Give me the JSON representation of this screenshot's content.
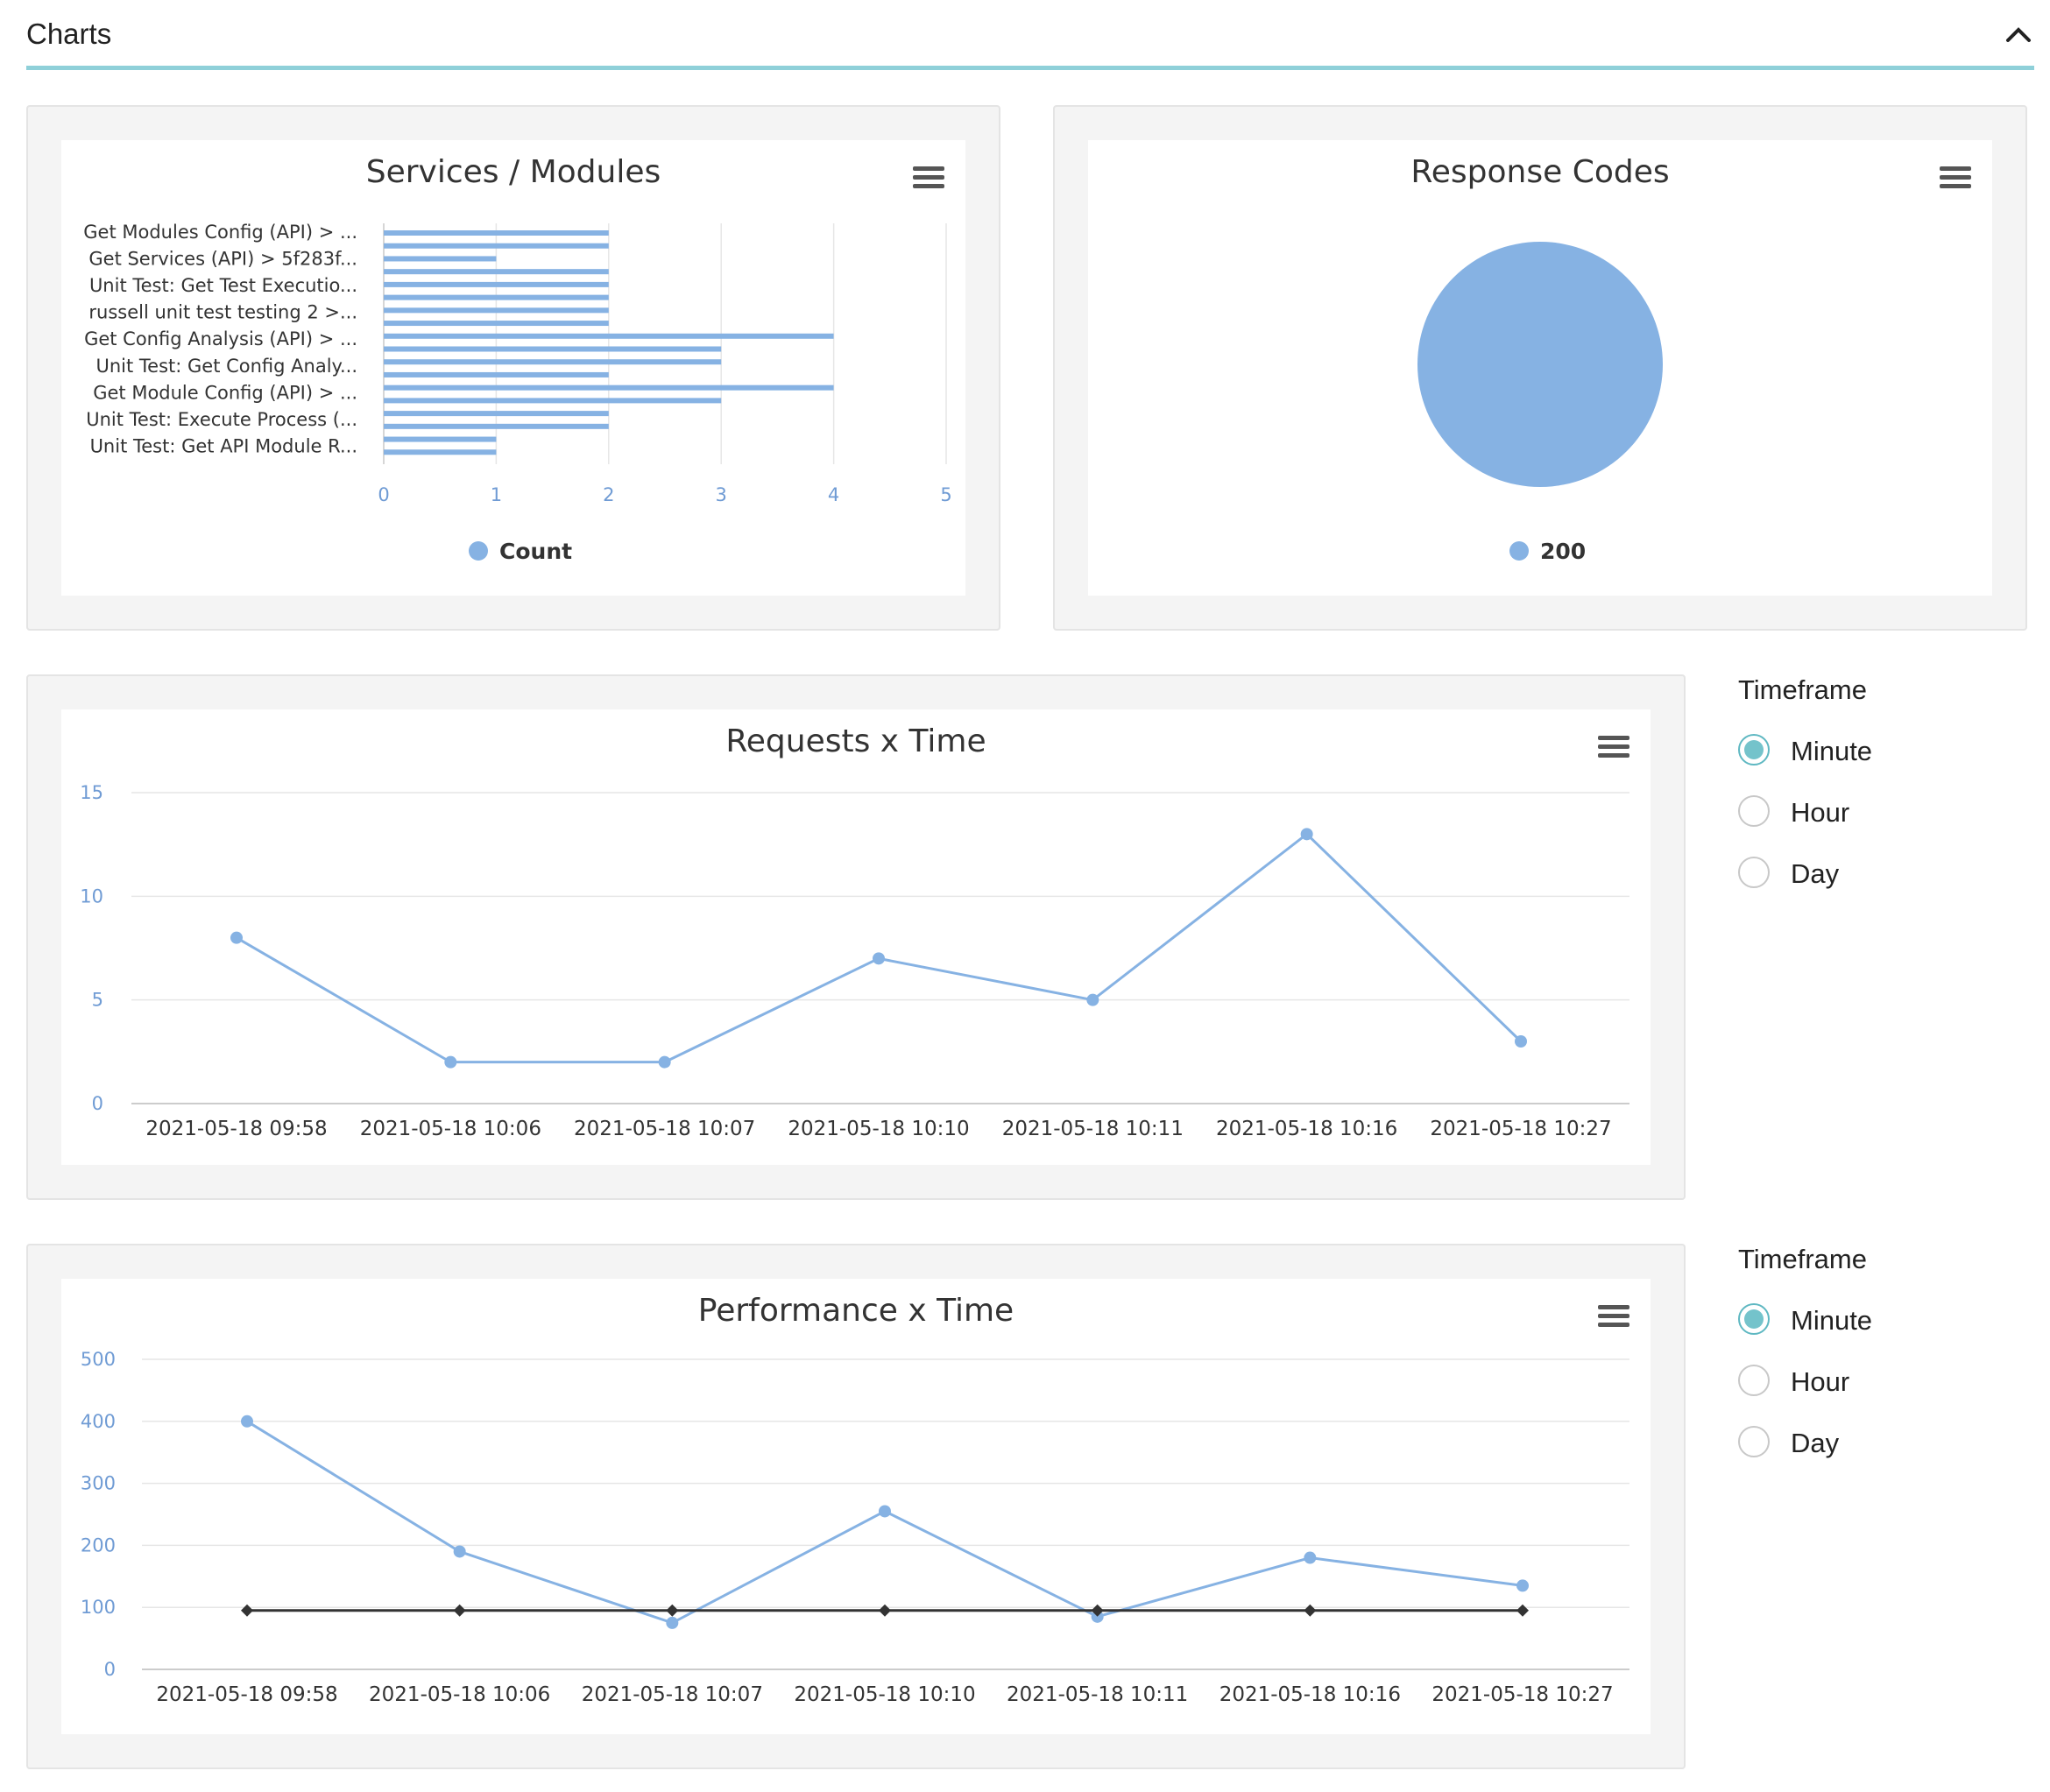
{
  "header": {
    "title": "Charts",
    "collapse_icon": "chevron-up-icon"
  },
  "colors": {
    "series": "#86b2e3",
    "threshold": "#333333",
    "accent": "#74c3cb",
    "header_rule": "#8fd0d9"
  },
  "timeframe_requests": {
    "title": "Timeframe",
    "options": [
      "Minute",
      "Hour",
      "Day"
    ],
    "selected": "Minute"
  },
  "timeframe_performance": {
    "title": "Timeframe",
    "options": [
      "Minute",
      "Hour",
      "Day"
    ],
    "selected": "Minute"
  },
  "chart_data": [
    {
      "type": "bar",
      "title": "Services / Modules",
      "orientation": "horizontal",
      "category_labels": [
        "Get Modules Config (API) > ...",
        "Get Services (API) > 5f283f...",
        "Unit Test: Get Test Executio...",
        "russell unit test testing 2 >...",
        "Get Config Analysis (API) > ...",
        "Unit Test: Get Config Analy...",
        "Get Module Config (API) > ...",
        "Unit Test: Execute Process (...",
        "Unit Test: Get API Module R..."
      ],
      "values": [
        2,
        2,
        1,
        2,
        2,
        2,
        2,
        2,
        4,
        3,
        3,
        2,
        4,
        3,
        2,
        2,
        1,
        1
      ],
      "xticks": [
        0,
        1,
        2,
        3,
        4,
        5
      ],
      "xlim": [
        0,
        5
      ],
      "legend": [
        "Count"
      ],
      "legend_position": "bottom",
      "grid": true
    },
    {
      "type": "pie",
      "title": "Response Codes",
      "labels": [
        "200"
      ],
      "values": [
        100
      ],
      "legend": [
        "200"
      ],
      "legend_position": "bottom"
    },
    {
      "type": "line",
      "title": "Requests x Time",
      "categories": [
        "2021-05-18 09:58",
        "2021-05-18 10:06",
        "2021-05-18 10:07",
        "2021-05-18 10:10",
        "2021-05-18 10:11",
        "2021-05-18 10:16",
        "2021-05-18 10:27"
      ],
      "series": [
        {
          "values": [
            8,
            2,
            2,
            7,
            5,
            13,
            3
          ]
        }
      ],
      "yticks": [
        0,
        5,
        10,
        15
      ],
      "ylim": [
        0,
        15
      ],
      "grid": true
    },
    {
      "type": "line",
      "title": "Performance x Time",
      "categories": [
        "2021-05-18 09:58",
        "2021-05-18 10:06",
        "2021-05-18 10:07",
        "2021-05-18 10:10",
        "2021-05-18 10:11",
        "2021-05-18 10:16",
        "2021-05-18 10:27"
      ],
      "series": [
        {
          "values": [
            400,
            190,
            75,
            255,
            85,
            180,
            135
          ]
        },
        {
          "values": [
            95,
            95,
            95,
            95,
            95,
            95,
            95
          ]
        }
      ],
      "yticks": [
        0,
        100,
        200,
        300,
        400,
        500
      ],
      "ylim": [
        0,
        500
      ],
      "grid": true
    }
  ]
}
